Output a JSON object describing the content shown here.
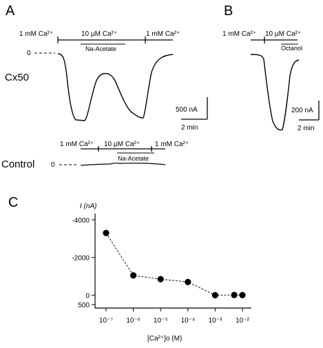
{
  "panels": {
    "a": {
      "letter": "A",
      "row_label": "Cx50",
      "control_label": "Control",
      "conditions": [
        "1 mM Ca²⁺",
        "10 µM Ca²⁺",
        "1 mM Ca²⁺"
      ],
      "drug": "Na-Acetate",
      "zero_label": "0",
      "scale_current": "500 nA",
      "scale_time": "2 min",
      "control_conditions": [
        "1 mM Ca²⁺",
        "10 µM Ca²⁺",
        "1 mM Ca²⁺"
      ],
      "control_drug": "Na-Acetate",
      "control_zero_label": "0"
    },
    "b": {
      "letter": "B",
      "conditions": [
        "1 mM Ca²⁺",
        "10 µM Ca²⁺"
      ],
      "drug": "Octanol",
      "scale_current": "200 nA",
      "scale_time": "2 min"
    },
    "c": {
      "letter": "C",
      "ylabel": "I (nA)",
      "xlabel": "[Ca²⁺]o (M)"
    }
  },
  "chart_data": {
    "type": "scatter",
    "title": "",
    "xlabel": "[Ca²⁺]o (M)",
    "ylabel": "I (nA)",
    "x_scale": "log",
    "x": [
      1e-07,
      1e-06,
      1e-05,
      0.0001,
      0.001,
      0.005,
      0.01
    ],
    "y": [
      -3300,
      -1050,
      -850,
      -700,
      0,
      -10,
      -5
    ],
    "x_ticks": [
      1e-07,
      1e-06,
      1e-05,
      0.0001,
      0.001,
      0.01
    ],
    "x_tick_labels": [
      "10⁻⁷",
      "10⁻⁶",
      "10⁻⁵",
      "10⁻⁴",
      "10⁻³",
      "10⁻²"
    ],
    "y_ticks": [
      -4000,
      -2000,
      0,
      500
    ],
    "y_tick_labels": [
      "-4000",
      "-2000",
      "0",
      "500"
    ],
    "ylim": [
      -4000,
      500
    ],
    "y_inverted": true,
    "connected": true,
    "line_style": "dashed",
    "marker": "filled-circle",
    "grid": false,
    "legend": "none"
  }
}
